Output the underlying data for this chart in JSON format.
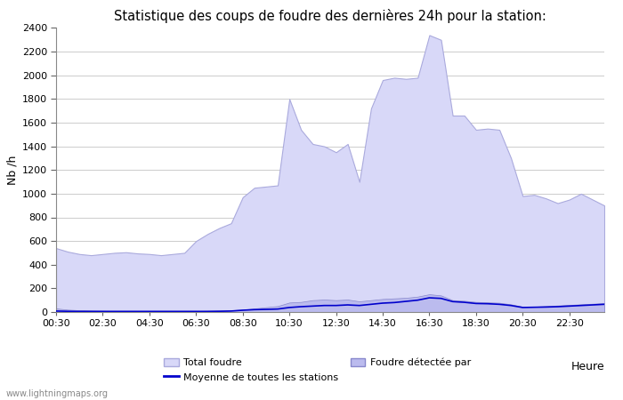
{
  "title": "Statistique des coups de foudre des dernières 24h pour la station:",
  "ylabel": "Nb /h",
  "xlabel": "Heure",
  "watermark": "www.lightningmaps.org",
  "ylim": [
    0,
    2400
  ],
  "yticks": [
    0,
    200,
    400,
    600,
    800,
    1000,
    1200,
    1400,
    1600,
    1800,
    2000,
    2200,
    2400
  ],
  "xtick_labels": [
    "00:30",
    "02:30",
    "04:30",
    "06:30",
    "08:30",
    "10:30",
    "12:30",
    "14:30",
    "16:30",
    "18:30",
    "20:30",
    "22:30"
  ],
  "color_total": "#d8d8f8",
  "color_detected": "#bbbbee",
  "color_mean": "#0000cc",
  "background_color": "#ffffff",
  "grid_color": "#cccccc",
  "times_h": [
    0.5,
    1.0,
    1.5,
    2.0,
    2.5,
    3.0,
    3.5,
    4.0,
    4.5,
    5.0,
    5.5,
    6.0,
    6.5,
    7.0,
    7.5,
    8.0,
    8.5,
    9.0,
    9.5,
    10.0,
    10.5,
    11.0,
    11.5,
    12.0,
    12.5,
    13.0,
    13.5,
    14.0,
    14.5,
    15.0,
    15.5,
    16.0,
    16.5,
    17.0,
    17.5,
    18.0,
    18.5,
    19.0,
    19.5,
    20.0,
    20.5,
    21.0,
    21.5,
    22.0,
    22.5,
    23.0,
    23.5,
    24.0
  ],
  "total_vals": [
    540,
    510,
    490,
    480,
    490,
    500,
    505,
    495,
    490,
    480,
    490,
    500,
    600,
    660,
    710,
    750,
    970,
    1050,
    1060,
    1070,
    1800,
    1540,
    1420,
    1400,
    1350,
    1420,
    1100,
    1720,
    1960,
    1980,
    1970,
    1980,
    2340,
    2300,
    1660,
    1660,
    1540,
    1550,
    1540,
    1300,
    980,
    990,
    960,
    920,
    950,
    1000,
    950,
    900
  ],
  "detected_vals": [
    30,
    20,
    15,
    12,
    10,
    8,
    8,
    8,
    8,
    8,
    8,
    8,
    8,
    10,
    12,
    15,
    20,
    30,
    40,
    50,
    80,
    85,
    100,
    105,
    100,
    105,
    90,
    100,
    110,
    115,
    120,
    130,
    150,
    140,
    100,
    95,
    85,
    82,
    78,
    65,
    45,
    45,
    50,
    55,
    60,
    65,
    70,
    75
  ],
  "mean_vals": [
    8,
    6,
    5,
    5,
    5,
    5,
    5,
    5,
    5,
    5,
    5,
    5,
    5,
    5,
    6,
    8,
    15,
    20,
    22,
    25,
    38,
    45,
    50,
    55,
    55,
    60,
    55,
    65,
    75,
    80,
    90,
    100,
    120,
    115,
    88,
    82,
    72,
    70,
    65,
    55,
    38,
    40,
    42,
    45,
    50,
    55,
    60,
    65
  ]
}
